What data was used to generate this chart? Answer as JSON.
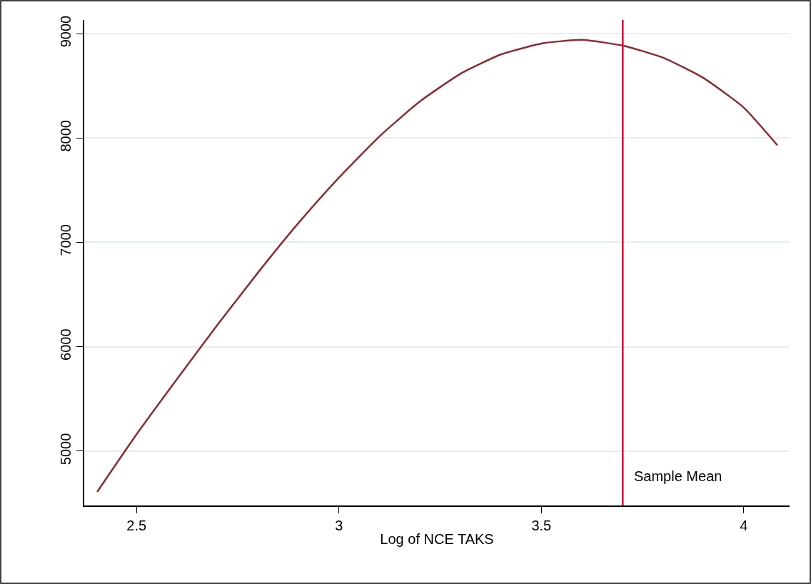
{
  "chart_data": {
    "type": "line",
    "xlabel": "Log of NCE TAKS",
    "x": [
      2.403,
      2.5,
      2.6,
      2.7,
      2.8,
      2.9,
      3.0,
      3.1,
      3.2,
      3.3,
      3.4,
      3.5,
      3.6,
      3.7,
      3.8,
      3.9,
      4.0,
      4.083
    ],
    "series": [
      {
        "color": "#8b2c32",
        "values": [
          4610,
          5160,
          5690,
          6210,
          6710,
          7185,
          7620,
          8015,
          8350,
          8615,
          8800,
          8905,
          8940,
          8885,
          8770,
          8575,
          8290,
          7930
        ]
      }
    ],
    "xlim": [
      2.371,
      4.113
    ],
    "xticks": [
      2.5,
      3,
      3.5,
      4
    ],
    "ylim": [
      4480,
      9130
    ],
    "yticks": [
      5000,
      6000,
      7000,
      8000,
      9000
    ],
    "grid": "y",
    "line_style": "solid",
    "marker": "none",
    "ref_lines": [
      {
        "axis": "x",
        "value": 3.701,
        "label": "Sample Mean",
        "color": "#d0103a",
        "line_style": "solid"
      }
    ]
  }
}
